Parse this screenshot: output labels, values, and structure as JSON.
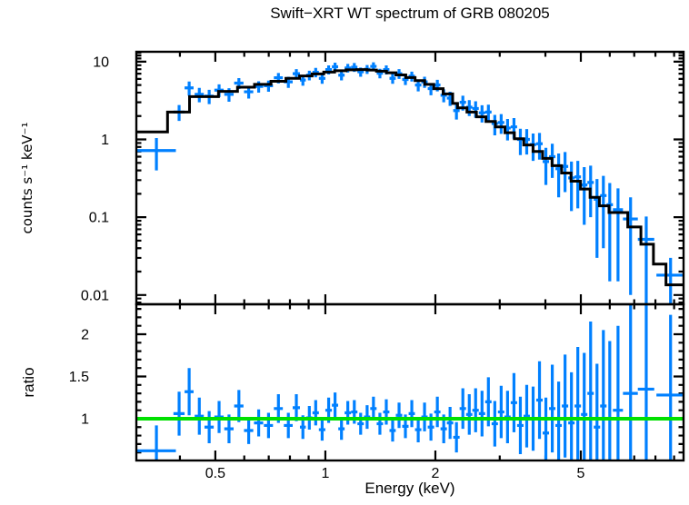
{
  "title": "Swift−XRT WT spectrum of GRB 080205",
  "colors": {
    "background": "#ffffff",
    "data": "#0080ff",
    "model": "#000000",
    "reference_line": "#00e000",
    "frame": "#000000",
    "text": "#000000"
  },
  "chart_data": [
    {
      "type": "scatter",
      "id": "spectrum",
      "xscale": "log",
      "yscale": "log",
      "ylabel": "counts s⁻¹ keV⁻¹",
      "xlim": [
        0.304,
        9.55
      ],
      "ylim": [
        0.0076,
        13.4
      ],
      "x_ticks": {
        "major": [
          0.5,
          1,
          2,
          5
        ],
        "labels": [
          "0.5",
          "1",
          "2",
          "5"
        ],
        "minor": [
          0.4,
          0.6,
          0.7,
          0.8,
          0.9,
          3,
          4,
          6,
          7,
          8,
          9
        ]
      },
      "y_ticks": {
        "major": [
          10,
          1,
          0.1,
          0.01
        ],
        "labels": [
          "10",
          "1",
          "0.1",
          "0.01"
        ]
      },
      "legend": "none",
      "grid": false,
      "model_step": {
        "edges": [
          0.304,
          0.37,
          0.425,
          0.51,
          0.575,
          0.64,
          0.71,
          0.78,
          0.85,
          0.92,
          0.99,
          1.06,
          1.14,
          1.22,
          1.3,
          1.38,
          1.47,
          1.56,
          1.66,
          1.76,
          1.87,
          1.98,
          2.1,
          2.23,
          2.3,
          2.44,
          2.59,
          2.75,
          2.92,
          3.1,
          3.29,
          3.49,
          3.7,
          3.93,
          4.17,
          4.43,
          4.7,
          4.99,
          5.3,
          5.62,
          5.97,
          6.72,
          7.3,
          7.9,
          8.55,
          9.55
        ],
        "values": [
          1.25,
          2.25,
          3.55,
          4.15,
          4.7,
          5.1,
          5.6,
          6.1,
          6.55,
          6.95,
          7.35,
          7.65,
          7.85,
          7.9,
          7.8,
          7.55,
          7.2,
          6.75,
          6.25,
          5.7,
          5.1,
          4.5,
          3.85,
          2.9,
          2.55,
          2.25,
          1.95,
          1.7,
          1.45,
          1.22,
          1.02,
          0.85,
          0.7,
          0.57,
          0.46,
          0.37,
          0.29,
          0.23,
          0.18,
          0.14,
          0.115,
          0.075,
          0.045,
          0.025,
          0.0135
        ]
      },
      "series": [
        {
          "name": "data",
          "color": "#0080ff",
          "format": [
            "energy_keV",
            "energy_halfwidth",
            "counts",
            "counts_err"
          ],
          "points": [
            [
              0.345,
              0.045,
              0.72,
              0.32
            ],
            [
              0.398,
              0.014,
              2.25,
              0.52
            ],
            [
              0.424,
              0.012,
              4.6,
              0.95
            ],
            [
              0.452,
              0.013,
              3.8,
              0.8
            ],
            [
              0.481,
              0.014,
              3.6,
              0.75
            ],
            [
              0.512,
              0.015,
              4.3,
              0.8
            ],
            [
              0.545,
              0.016,
              3.8,
              0.75
            ],
            [
              0.58,
              0.017,
              5.3,
              0.85
            ],
            [
              0.617,
              0.018,
              4.1,
              0.75
            ],
            [
              0.657,
              0.019,
              4.8,
              0.8
            ],
            [
              0.699,
              0.02,
              4.9,
              0.8
            ],
            [
              0.744,
              0.021,
              6.2,
              0.95
            ],
            [
              0.792,
              0.022,
              5.5,
              0.9
            ],
            [
              0.833,
              0.019,
              7.0,
              1.0
            ],
            [
              0.868,
              0.016,
              5.8,
              0.9
            ],
            [
              0.904,
              0.018,
              6.7,
              0.95
            ],
            [
              0.941,
              0.019,
              7.3,
              1.0
            ],
            [
              0.98,
              0.02,
              6.1,
              0.9
            ],
            [
              1.021,
              0.021,
              7.9,
              1.05
            ],
            [
              1.063,
              0.021,
              8.6,
              1.1
            ],
            [
              1.107,
              0.022,
              6.7,
              0.95
            ],
            [
              1.152,
              0.023,
              8.3,
              1.05
            ],
            [
              1.2,
              0.024,
              8.5,
              1.1
            ],
            [
              1.249,
              0.025,
              7.4,
              1.0
            ],
            [
              1.301,
              0.026,
              8.0,
              1.05
            ],
            [
              1.354,
              0.027,
              8.7,
              1.1
            ],
            [
              1.41,
              0.028,
              7.1,
              1.0
            ],
            [
              1.468,
              0.029,
              7.9,
              1.05
            ],
            [
              1.528,
              0.03,
              6.1,
              0.9
            ],
            [
              1.591,
              0.032,
              7.0,
              1.0
            ],
            [
              1.656,
              0.033,
              5.9,
              0.9
            ],
            [
              1.724,
              0.034,
              6.5,
              0.95
            ],
            [
              1.795,
              0.036,
              5.0,
              0.85
            ],
            [
              1.868,
              0.037,
              5.5,
              0.9
            ],
            [
              1.945,
              0.039,
              4.5,
              0.8
            ],
            [
              2.025,
              0.04,
              5.0,
              0.85
            ],
            [
              2.108,
              0.042,
              3.7,
              0.7
            ],
            [
              2.194,
              0.044,
              3.4,
              0.7
            ],
            [
              2.284,
              0.046,
              2.35,
              0.55
            ],
            [
              2.378,
              0.048,
              3.0,
              0.65
            ],
            [
              2.476,
              0.049,
              2.6,
              0.6
            ],
            [
              2.577,
              0.052,
              2.5,
              0.6
            ],
            [
              2.683,
              0.054,
              2.2,
              0.55
            ],
            [
              2.793,
              0.056,
              2.25,
              0.55
            ],
            [
              2.908,
              0.058,
              1.6,
              0.47
            ],
            [
              3.027,
              0.061,
              1.65,
              0.47
            ],
            [
              3.151,
              0.063,
              1.4,
              0.43
            ],
            [
              3.281,
              0.066,
              1.45,
              0.43
            ],
            [
              3.416,
              0.069,
              1.0,
              0.37
            ],
            [
              3.556,
              0.071,
              1.0,
              0.36
            ],
            [
              3.702,
              0.074,
              0.86,
              0.33
            ],
            [
              3.854,
              0.077,
              0.88,
              0.33
            ],
            [
              4.012,
              0.081,
              0.52,
              0.26
            ],
            [
              4.177,
              0.084,
              0.6,
              0.28
            ],
            [
              4.348,
              0.087,
              0.42,
              0.24
            ],
            [
              4.527,
              0.091,
              0.45,
              0.24
            ],
            [
              4.713,
              0.095,
              0.32,
              0.2
            ],
            [
              4.906,
              0.099,
              0.33,
              0.2
            ],
            [
              5.108,
              0.103,
              0.26,
              0.18
            ],
            [
              5.318,
              0.107,
              0.28,
              0.18
            ],
            [
              5.536,
              0.111,
              0.17,
              0.14
            ],
            [
              5.763,
              0.116,
              0.19,
              0.15
            ],
            [
              6.0,
              0.121,
              0.145,
              0.13
            ],
            [
              6.32,
              0.2,
              0.125,
              0.11
            ],
            [
              6.84,
              0.32,
              0.095,
              0.085
            ],
            [
              7.55,
              0.39,
              0.052,
              0.05
            ],
            [
              8.8,
              0.75,
              0.018,
              0.012
            ]
          ]
        }
      ]
    },
    {
      "type": "scatter",
      "id": "ratio",
      "xscale": "log",
      "yscale": "linear",
      "xlabel": "Energy (keV)",
      "ylabel": "ratio",
      "xlim": [
        0.304,
        9.55
      ],
      "ylim": [
        0.505,
        2.355
      ],
      "x_ticks": {
        "major": [
          0.5,
          1,
          2,
          5
        ],
        "labels": [
          "0.5",
          "1",
          "2",
          "5"
        ],
        "minor": [
          0.4,
          0.6,
          0.7,
          0.8,
          0.9,
          3,
          4,
          6,
          7,
          8,
          9
        ]
      },
      "y_ticks": {
        "major": [
          1,
          1.5,
          2
        ],
        "labels": [
          "1",
          "1.5",
          "2"
        ],
        "minor_step": 0.1
      },
      "reference_line": {
        "y": 1,
        "color": "#00e000"
      },
      "grid": false,
      "series": [
        {
          "name": "ratio",
          "color": "#0080ff",
          "format": [
            "energy_keV",
            "energy_halfwidth",
            "ratio",
            "ratio_err"
          ],
          "points": [
            [
              0.345,
              0.045,
              0.62,
              0.3
            ],
            [
              0.398,
              0.014,
              1.06,
              0.26
            ],
            [
              0.424,
              0.012,
              1.32,
              0.28
            ],
            [
              0.452,
              0.013,
              1.03,
              0.22
            ],
            [
              0.481,
              0.014,
              0.9,
              0.19
            ],
            [
              0.512,
              0.015,
              1.02,
              0.19
            ],
            [
              0.545,
              0.016,
              0.88,
              0.17
            ],
            [
              0.58,
              0.017,
              1.15,
              0.19
            ],
            [
              0.617,
              0.018,
              0.86,
              0.16
            ],
            [
              0.657,
              0.019,
              0.95,
              0.16
            ],
            [
              0.699,
              0.02,
              0.92,
              0.15
            ],
            [
              0.744,
              0.021,
              1.12,
              0.17
            ],
            [
              0.792,
              0.022,
              0.92,
              0.15
            ],
            [
              0.833,
              0.019,
              1.13,
              0.16
            ],
            [
              0.868,
              0.016,
              0.9,
              0.14
            ],
            [
              0.904,
              0.018,
              1.01,
              0.14
            ],
            [
              0.941,
              0.019,
              1.07,
              0.15
            ],
            [
              0.98,
              0.02,
              0.87,
              0.13
            ],
            [
              1.021,
              0.021,
              1.1,
              0.15
            ],
            [
              1.063,
              0.021,
              1.16,
              0.15
            ],
            [
              1.107,
              0.022,
              0.88,
              0.13
            ],
            [
              1.152,
              0.023,
              1.07,
              0.14
            ],
            [
              1.2,
              0.024,
              1.08,
              0.14
            ],
            [
              1.249,
              0.025,
              0.94,
              0.13
            ],
            [
              1.301,
              0.026,
              1.02,
              0.14
            ],
            [
              1.354,
              0.027,
              1.12,
              0.14
            ],
            [
              1.41,
              0.028,
              0.94,
              0.13
            ],
            [
              1.468,
              0.029,
              1.08,
              0.15
            ],
            [
              1.528,
              0.03,
              0.86,
              0.13
            ],
            [
              1.591,
              0.032,
              1.04,
              0.15
            ],
            [
              1.656,
              0.033,
              0.91,
              0.14
            ],
            [
              1.724,
              0.034,
              1.06,
              0.16
            ],
            [
              1.795,
              0.036,
              0.87,
              0.15
            ],
            [
              1.868,
              0.037,
              1.02,
              0.17
            ],
            [
              1.945,
              0.039,
              0.9,
              0.16
            ],
            [
              2.025,
              0.04,
              1.08,
              0.18
            ],
            [
              2.108,
              0.042,
              0.88,
              0.17
            ],
            [
              2.194,
              0.044,
              0.95,
              0.19
            ],
            [
              2.284,
              0.046,
              0.78,
              0.18
            ],
            [
              2.378,
              0.048,
              1.12,
              0.24
            ],
            [
              2.476,
              0.049,
              1.05,
              0.24
            ],
            [
              2.577,
              0.052,
              1.1,
              0.26
            ],
            [
              2.683,
              0.054,
              1.06,
              0.27
            ],
            [
              2.793,
              0.056,
              1.2,
              0.29
            ],
            [
              2.908,
              0.058,
              0.94,
              0.27
            ],
            [
              3.027,
              0.061,
              1.08,
              0.31
            ],
            [
              3.151,
              0.063,
              1.02,
              0.31
            ],
            [
              3.281,
              0.066,
              1.19,
              0.35
            ],
            [
              3.416,
              0.069,
              0.92,
              0.34
            ],
            [
              3.556,
              0.071,
              1.03,
              0.37
            ],
            [
              3.702,
              0.074,
              1.0,
              0.38
            ],
            [
              3.854,
              0.077,
              1.22,
              0.46
            ],
            [
              4.012,
              0.081,
              0.83,
              0.42
            ],
            [
              4.177,
              0.084,
              1.12,
              0.52
            ],
            [
              4.348,
              0.087,
              0.92,
              0.52
            ],
            [
              4.527,
              0.091,
              1.15,
              0.61
            ],
            [
              4.713,
              0.095,
              0.95,
              0.6
            ],
            [
              4.906,
              0.099,
              1.15,
              0.7
            ],
            [
              5.108,
              0.103,
              1.05,
              0.73
            ],
            [
              5.318,
              0.107,
              1.3,
              0.85
            ],
            [
              5.536,
              0.111,
              0.9,
              0.75
            ],
            [
              5.763,
              0.116,
              1.15,
              0.9
            ],
            [
              6.0,
              0.121,
              1.0,
              0.92
            ],
            [
              6.32,
              0.2,
              1.1,
              1.0
            ],
            [
              6.84,
              0.32,
              1.3,
              1.15
            ],
            [
              7.55,
              0.39,
              1.35,
              1.3
            ],
            [
              8.8,
              0.75,
              1.28,
              0.95
            ]
          ]
        }
      ]
    }
  ]
}
